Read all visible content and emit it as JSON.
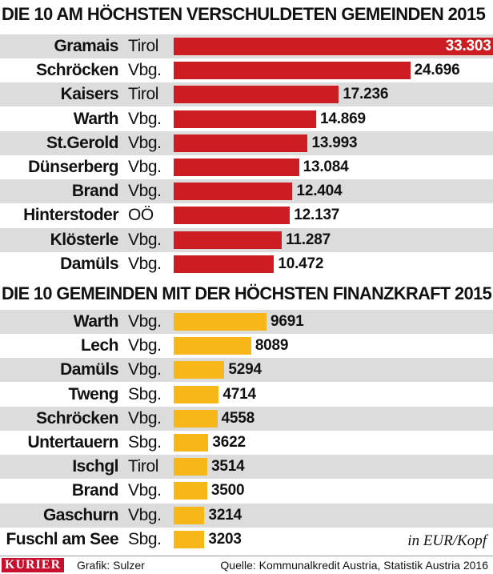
{
  "chart_data": [
    {
      "type": "bar",
      "orientation": "horizontal",
      "title": "DIE 10 AM HÖCHSTEN VERSCHULDETEN GEMEINDEN 2015",
      "color": "#cc1e22",
      "categories": [
        "Gramais",
        "Schröcken",
        "Kaisers",
        "Warth",
        "St.Gerold",
        "Dünserberg",
        "Brand",
        "Hinterstoder",
        "Klösterle",
        "Damüls"
      ],
      "regions": [
        "Tirol",
        "Vbg.",
        "Tirol",
        "Vbg.",
        "Vbg.",
        "Vbg.",
        "Vbg.",
        "OÖ",
        "Vbg.",
        "Vbg."
      ],
      "values": [
        33303,
        24696,
        17236,
        14869,
        13993,
        13084,
        12404,
        12137,
        11287,
        10472
      ],
      "value_labels": [
        "33.303",
        "24.696",
        "17.236",
        "14.869",
        "13.993",
        "13.084",
        "12.404",
        "12.137",
        "11.287",
        "10.472"
      ]
    },
    {
      "type": "bar",
      "orientation": "horizontal",
      "title": "DIE 10 GEMEINDEN MIT DER HÖCHSTEN FINANZKRAFT 2015",
      "color": "#f7b718",
      "categories": [
        "Warth",
        "Lech",
        "Damüls",
        "Tweng",
        "Schröcken",
        "Untertauern",
        "Ischgl",
        "Brand",
        "Gaschurn",
        "Fuschl am See"
      ],
      "regions": [
        "Vbg.",
        "Vbg.",
        "Vbg.",
        "Sbg.",
        "Vbg.",
        "Sbg.",
        "Tirol",
        "Vbg.",
        "Vbg.",
        "Sbg."
      ],
      "values": [
        9691,
        8089,
        5294,
        4714,
        4558,
        3622,
        3514,
        3500,
        3214,
        3203
      ],
      "value_labels": [
        "9691",
        "8089",
        "5294",
        "4714",
        "4558",
        "3622",
        "3514",
        "3500",
        "3214",
        "3203"
      ]
    }
  ],
  "unit_label": "in EUR/Kopf",
  "footer": {
    "logo": "KURIER",
    "credit": "Grafik: Sulzer",
    "source": "Quelle: Kommunalkredit Austria, Statistik Austria 2016"
  }
}
